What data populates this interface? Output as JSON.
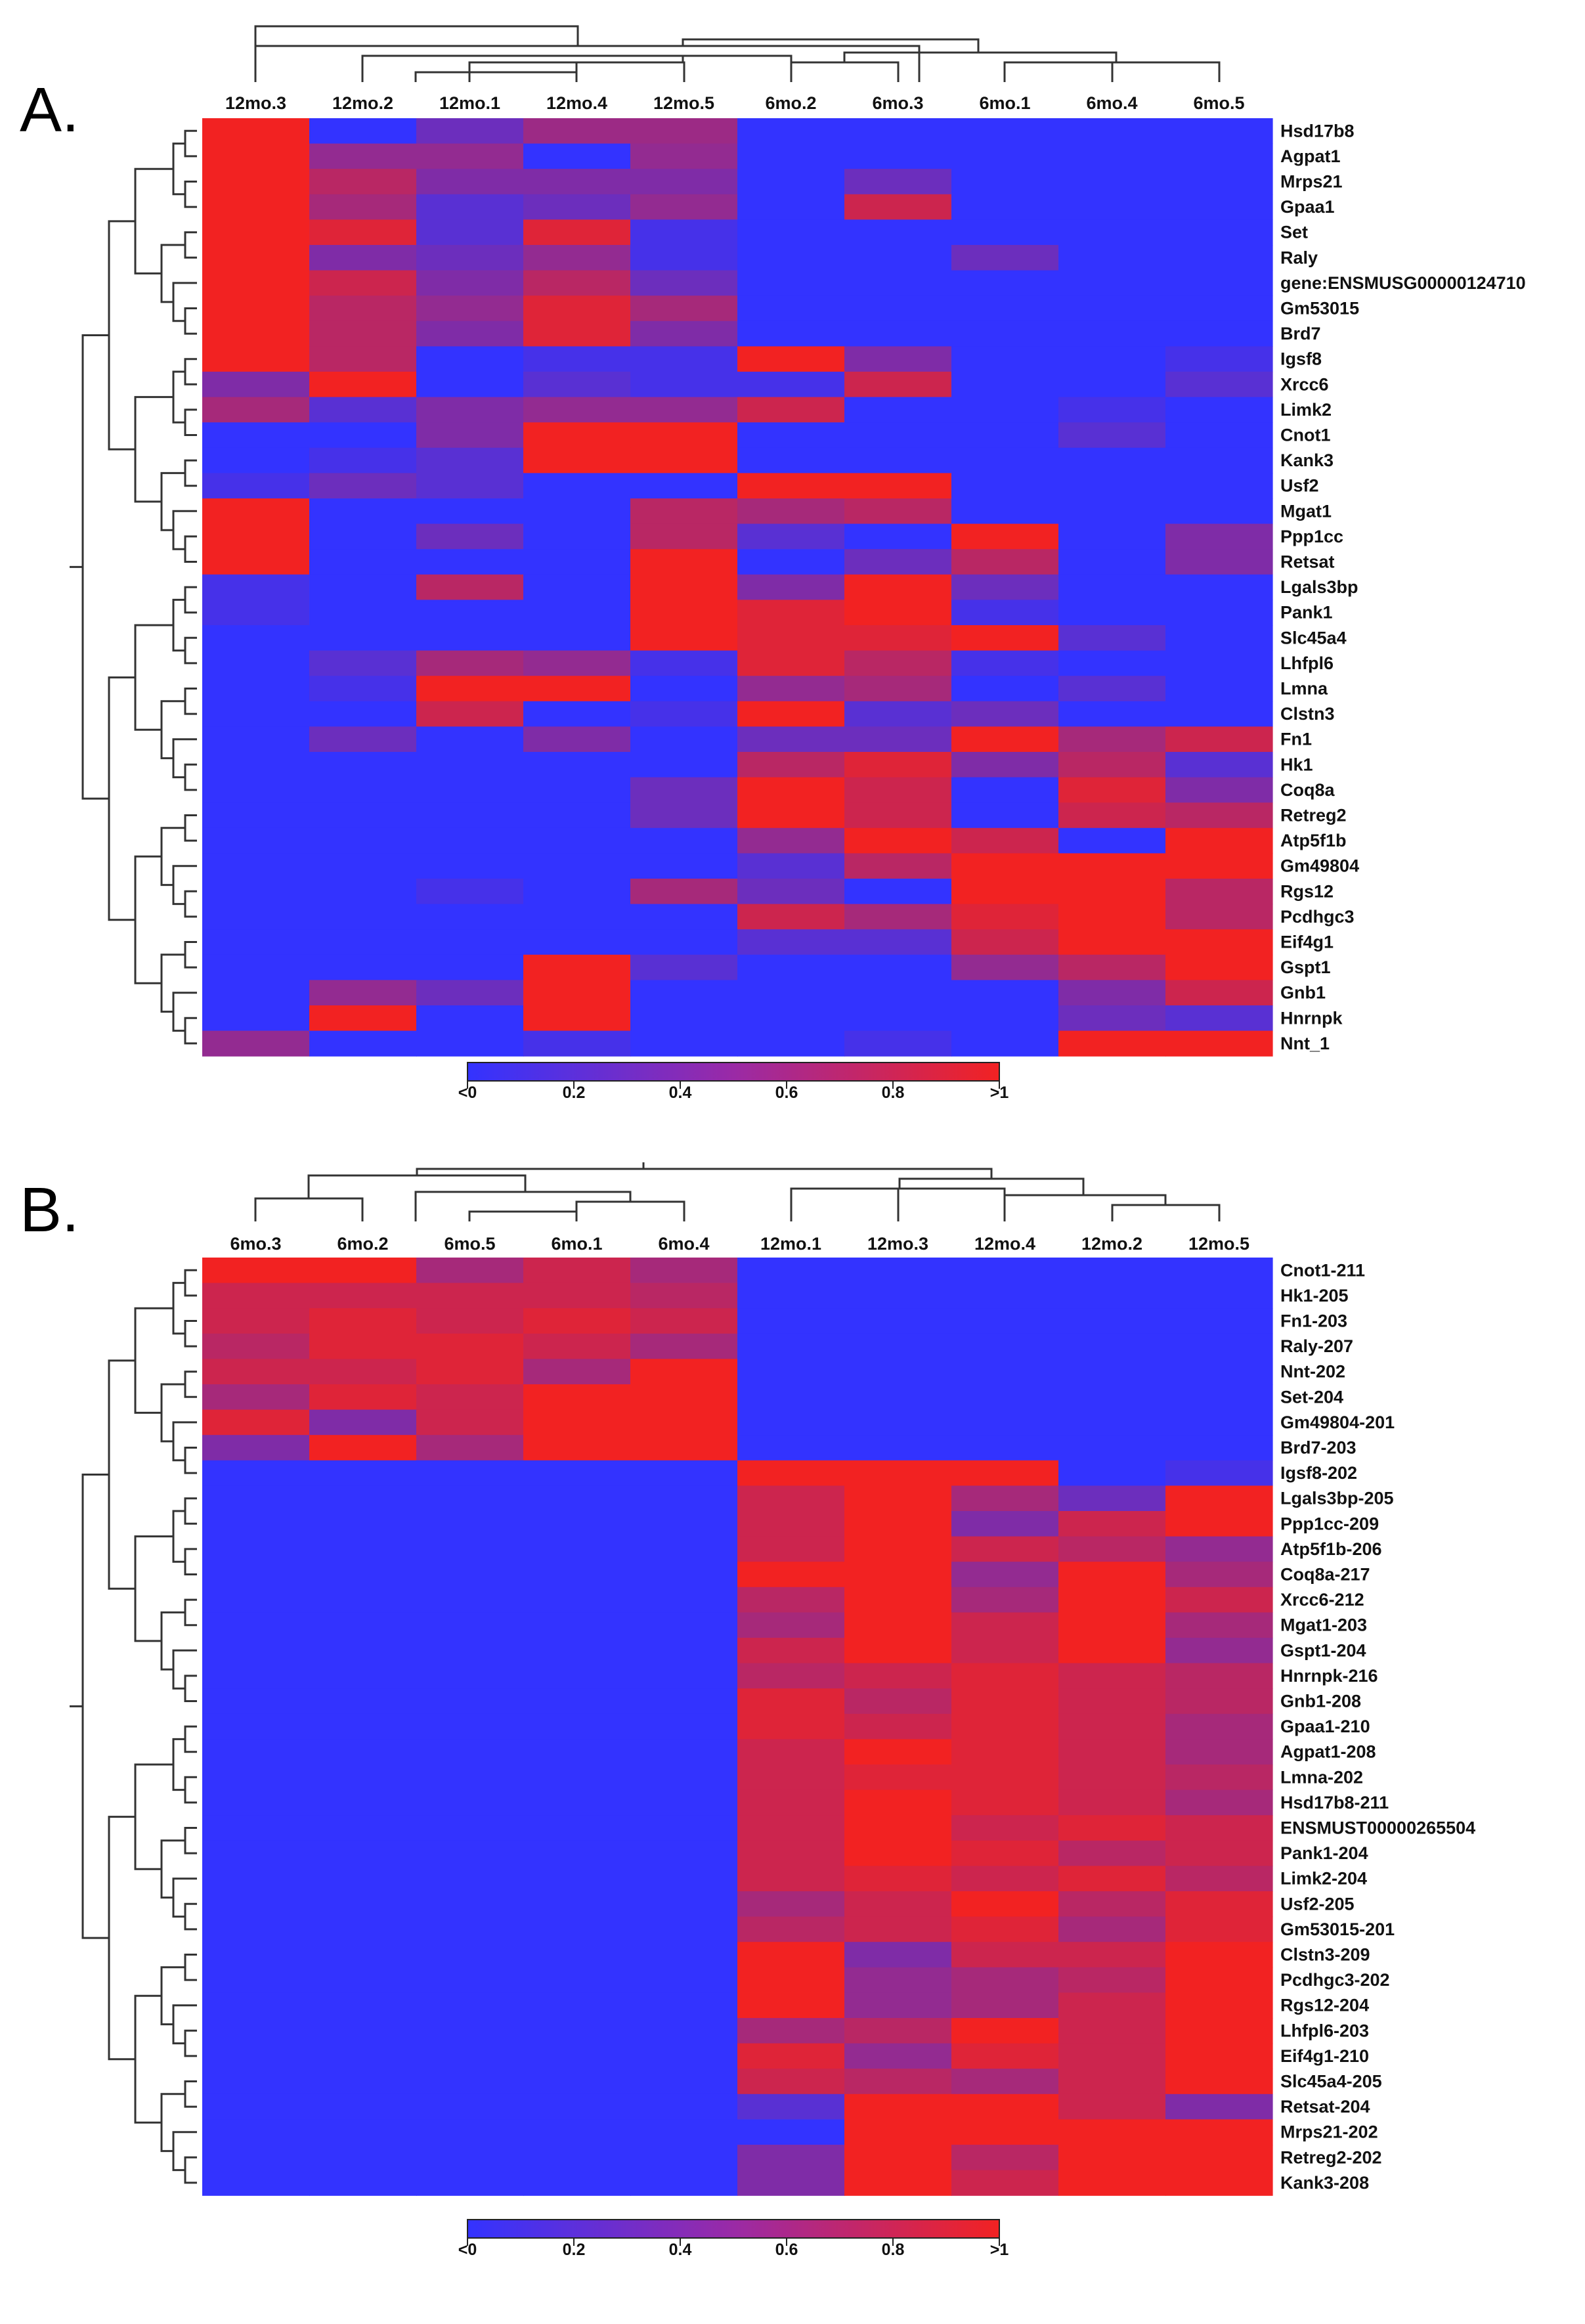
{
  "chart_data": [
    {
      "type": "heatmap",
      "panel_label": "A.",
      "columns": [
        "12mo.3",
        "12mo.2",
        "12mo.1",
        "12mo.4",
        "12mo.5",
        "6mo.2",
        "6mo.3",
        "6mo.1",
        "6mo.4",
        "6mo.5"
      ],
      "rows": [
        "Hsd17b8",
        "Agpat1",
        "Mrps21",
        "Gpaa1",
        "Set",
        "Raly",
        "gene:ENSMUSG00000124710",
        "Gm53015",
        "Brd7",
        "Igsf8",
        "Xrcc6",
        "Limk2",
        "Cnot1",
        "Kank3",
        "Usf2",
        "Mgat1",
        "Ppp1cc",
        "Retsat",
        "Lgals3bp",
        "Pank1",
        "Slc45a4",
        "Lhfpl6",
        "Lmna",
        "Clstn3",
        "Fn1",
        "Hk1",
        "Coq8a",
        "Retreg2",
        "Atp5f1b",
        "Gm49804",
        "Rgs12",
        "Pcdhgc3",
        "Eif4g1",
        "Gspt1",
        "Gnb1",
        "Hnrnpk",
        "Nnt_1"
      ],
      "values": [
        [
          1,
          0,
          0.3,
          0.55,
          0.55,
          0,
          0,
          0,
          0,
          0
        ],
        [
          1,
          0.5,
          0.5,
          0,
          0.5,
          0,
          0,
          0,
          0,
          0
        ],
        [
          1,
          0.7,
          0.4,
          0.4,
          0.4,
          0,
          0.3,
          0,
          0,
          0
        ],
        [
          1,
          0.6,
          0.2,
          0.3,
          0.5,
          0,
          0.8,
          0,
          0,
          0
        ],
        [
          1,
          0.9,
          0.2,
          0.9,
          0.1,
          0,
          0,
          0,
          0,
          0
        ],
        [
          1,
          0.4,
          0.3,
          0.5,
          0.1,
          0,
          0,
          0.3,
          0,
          0
        ],
        [
          1,
          0.8,
          0.4,
          0.7,
          0.3,
          0,
          0,
          0,
          0,
          0
        ],
        [
          1,
          0.7,
          0.5,
          0.9,
          0.6,
          0,
          0,
          0,
          0,
          0
        ],
        [
          1,
          0.7,
          0.4,
          0.9,
          0.4,
          0,
          0,
          0,
          0,
          0
        ],
        [
          1,
          0.7,
          0,
          0.1,
          0.1,
          1,
          0.4,
          0,
          0,
          0.1
        ],
        [
          0.4,
          1,
          0,
          0.2,
          0.1,
          0.1,
          0.8,
          0,
          0,
          0.2
        ],
        [
          0.6,
          0.2,
          0.4,
          0.5,
          0.5,
          0.8,
          0,
          0,
          0.1,
          0
        ],
        [
          0,
          0,
          0.4,
          1,
          1,
          0,
          0,
          0,
          0.2,
          0
        ],
        [
          0,
          0.1,
          0.2,
          1,
          1,
          0,
          0,
          0,
          0,
          0
        ],
        [
          0.1,
          0.3,
          0.2,
          0,
          0,
          1,
          1,
          0,
          0,
          0
        ],
        [
          1,
          0,
          0,
          0,
          0.7,
          0.6,
          0.7,
          0,
          0,
          0
        ],
        [
          1,
          0,
          0.3,
          0,
          0.7,
          0.2,
          0,
          1,
          0,
          0.4
        ],
        [
          1,
          0,
          0,
          0,
          1,
          0,
          0.3,
          0.7,
          0,
          0.4
        ],
        [
          0.1,
          0,
          0.7,
          0,
          1,
          0.4,
          1,
          0.3,
          0,
          0
        ],
        [
          0.1,
          0,
          0,
          0,
          1,
          0.9,
          1,
          0.1,
          0,
          0
        ],
        [
          0,
          0,
          0,
          0,
          1,
          0.9,
          0.9,
          1,
          0.2,
          0
        ],
        [
          0,
          0.2,
          0.6,
          0.5,
          0.1,
          0.9,
          0.7,
          0.1,
          0,
          0
        ],
        [
          0,
          0.1,
          1,
          1,
          0,
          0.5,
          0.6,
          0,
          0.2,
          0
        ],
        [
          0,
          0,
          0.8,
          0,
          0.1,
          1,
          0.2,
          0.3,
          0,
          0
        ],
        [
          0,
          0.3,
          0,
          0.4,
          0,
          0.3,
          0.3,
          1,
          0.6,
          0.8
        ],
        [
          0,
          0,
          0,
          0,
          0,
          0.7,
          0.9,
          0.4,
          0.7,
          0.2
        ],
        [
          0,
          0,
          0,
          0,
          0.3,
          1,
          0.8,
          0,
          0.9,
          0.4
        ],
        [
          0,
          0,
          0,
          0,
          0.3,
          1,
          0.8,
          0,
          0.8,
          0.7
        ],
        [
          0,
          0,
          0,
          0,
          0,
          0.5,
          1,
          0.8,
          0,
          1
        ],
        [
          0,
          0,
          0,
          0,
          0,
          0.2,
          0.7,
          1,
          1,
          1
        ],
        [
          0,
          0,
          0.1,
          0,
          0.6,
          0.3,
          0,
          1,
          1,
          0.7
        ],
        [
          0,
          0,
          0,
          0,
          0,
          0.8,
          0.6,
          0.9,
          1,
          0.7
        ],
        [
          0,
          0,
          0,
          0,
          0,
          0.2,
          0.2,
          0.8,
          1,
          1
        ],
        [
          0,
          0,
          0,
          1,
          0.2,
          0,
          0,
          0.5,
          0.7,
          1
        ],
        [
          0,
          0.5,
          0.3,
          1,
          0,
          0,
          0,
          0,
          0.4,
          0.8
        ],
        [
          0,
          1,
          0,
          1,
          0,
          0,
          0,
          0,
          0.3,
          0.2
        ],
        [
          0.5,
          0,
          0,
          0.1,
          0,
          0,
          0.1,
          0,
          1,
          1
        ]
      ],
      "colorbar": {
        "ticks": [
          "<0",
          "0.2",
          "0.4",
          "0.6",
          "0.8",
          ">1"
        ],
        "low_color": "#3333ff",
        "high_color": "#f22222"
      }
    },
    {
      "type": "heatmap",
      "panel_label": "B.",
      "columns": [
        "6mo.3",
        "6mo.2",
        "6mo.5",
        "6mo.1",
        "6mo.4",
        "12mo.1",
        "12mo.3",
        "12mo.4",
        "12mo.2",
        "12mo.5"
      ],
      "rows": [
        "Cnot1-211",
        "Hk1-205",
        "Fn1-203",
        "Raly-207",
        "Nnt-202",
        "Set-204",
        "Gm49804-201",
        "Brd7-203",
        "Igsf8-202",
        "Lgals3bp-205",
        "Ppp1cc-209",
        "Atp5f1b-206",
        "Coq8a-217",
        "Xrcc6-212",
        "Mgat1-203",
        "Gspt1-204",
        "Hnrnpk-216",
        "Gnb1-208",
        "Gpaa1-210",
        "Agpat1-208",
        "Lmna-202",
        "Hsd17b8-211",
        "ENSMUST00000265504",
        "Pank1-204",
        "Limk2-204",
        "Usf2-205",
        "Gm53015-201",
        "Clstn3-209",
        "Pcdhgc3-202",
        "Rgs12-204",
        "Lhfpl6-203",
        "Eif4g1-210",
        "Slc45a4-205",
        "Retsat-204",
        "Mrps21-202",
        "Retreg2-202",
        "Kank3-208"
      ],
      "values": [
        [
          1,
          1,
          0.6,
          0.8,
          0.6,
          0,
          0,
          0,
          0,
          0
        ],
        [
          0.8,
          0.8,
          0.8,
          0.8,
          0.7,
          0,
          0,
          0,
          0,
          0
        ],
        [
          0.8,
          0.9,
          0.8,
          0.9,
          0.8,
          0,
          0,
          0,
          0,
          0
        ],
        [
          0.7,
          0.9,
          0.9,
          0.8,
          0.6,
          0,
          0,
          0,
          0,
          0
        ],
        [
          0.8,
          0.8,
          0.9,
          0.6,
          1,
          0,
          0,
          0,
          0,
          0
        ],
        [
          0.6,
          0.9,
          0.8,
          1,
          1,
          0,
          0,
          0,
          0,
          0
        ],
        [
          0.9,
          0.4,
          0.8,
          1,
          1,
          0,
          0,
          0,
          0,
          0
        ],
        [
          0.4,
          1,
          0.6,
          1,
          1,
          0,
          0,
          0,
          0,
          0
        ],
        [
          0,
          0,
          0,
          0,
          0,
          1,
          1,
          1,
          0,
          0.1
        ],
        [
          0,
          0,
          0,
          0,
          0,
          0.8,
          1,
          0.6,
          0.3,
          1
        ],
        [
          0,
          0,
          0,
          0,
          0,
          0.8,
          1,
          0.4,
          0.8,
          1
        ],
        [
          0,
          0,
          0,
          0,
          0,
          0.8,
          1,
          0.8,
          0.7,
          0.5
        ],
        [
          0,
          0,
          0,
          0,
          0,
          1,
          1,
          0.5,
          1,
          0.6
        ],
        [
          0,
          0,
          0,
          0,
          0,
          0.7,
          1,
          0.6,
          1,
          0.8
        ],
        [
          0,
          0,
          0,
          0,
          0,
          0.6,
          1,
          0.8,
          1,
          0.6
        ],
        [
          0,
          0,
          0,
          0,
          0,
          0.8,
          1,
          0.8,
          1,
          0.5
        ],
        [
          0,
          0,
          0,
          0,
          0,
          0.7,
          0.8,
          0.9,
          0.8,
          0.7
        ],
        [
          0,
          0,
          0,
          0,
          0,
          0.9,
          0.7,
          0.9,
          0.8,
          0.7
        ],
        [
          0,
          0,
          0,
          0,
          0,
          0.9,
          0.8,
          0.9,
          0.8,
          0.6
        ],
        [
          0,
          0,
          0,
          0,
          0,
          0.8,
          1,
          0.9,
          0.8,
          0.6
        ],
        [
          0,
          0,
          0,
          0,
          0,
          0.8,
          0.9,
          0.9,
          0.8,
          0.7
        ],
        [
          0,
          0,
          0,
          0,
          0,
          0.8,
          1,
          0.9,
          0.8,
          0.6
        ],
        [
          0,
          0,
          0,
          0,
          0,
          0.8,
          1,
          0.8,
          0.9,
          0.8
        ],
        [
          0,
          0,
          0,
          0,
          0,
          0.8,
          1,
          0.9,
          0.7,
          0.8
        ],
        [
          0,
          0,
          0,
          0,
          0,
          0.8,
          0.9,
          0.8,
          0.9,
          0.7
        ],
        [
          0,
          0,
          0,
          0,
          0,
          0.6,
          0.8,
          1,
          0.7,
          0.9
        ],
        [
          0,
          0,
          0,
          0,
          0,
          0.7,
          0.8,
          0.9,
          0.6,
          0.9
        ],
        [
          0,
          0,
          0,
          0,
          0,
          1,
          0.4,
          0.8,
          0.8,
          1
        ],
        [
          0,
          0,
          0,
          0,
          0,
          1,
          0.5,
          0.6,
          0.7,
          1
        ],
        [
          0,
          0,
          0,
          0,
          0,
          1,
          0.5,
          0.6,
          0.8,
          1
        ],
        [
          0,
          0,
          0,
          0,
          0,
          0.6,
          0.7,
          1,
          0.8,
          1
        ],
        [
          0,
          0,
          0,
          0,
          0,
          0.9,
          0.5,
          0.9,
          0.8,
          1
        ],
        [
          0,
          0,
          0,
          0,
          0,
          0.8,
          0.7,
          0.6,
          0.8,
          1
        ],
        [
          0,
          0,
          0,
          0,
          0,
          0.2,
          1,
          1,
          0.8,
          0.4
        ],
        [
          0,
          0,
          0,
          0,
          0,
          0,
          1,
          1,
          1,
          1
        ],
        [
          0,
          0,
          0,
          0,
          0,
          0.4,
          1,
          0.7,
          1,
          1
        ],
        [
          0,
          0,
          0,
          0,
          0,
          0.4,
          1,
          0.8,
          1,
          1
        ]
      ],
      "colorbar": {
        "ticks": [
          "<0",
          "0.2",
          "0.4",
          "0.6",
          "0.8",
          ">1"
        ],
        "low_color": "#3333ff",
        "high_color": "#f22222"
      }
    }
  ]
}
